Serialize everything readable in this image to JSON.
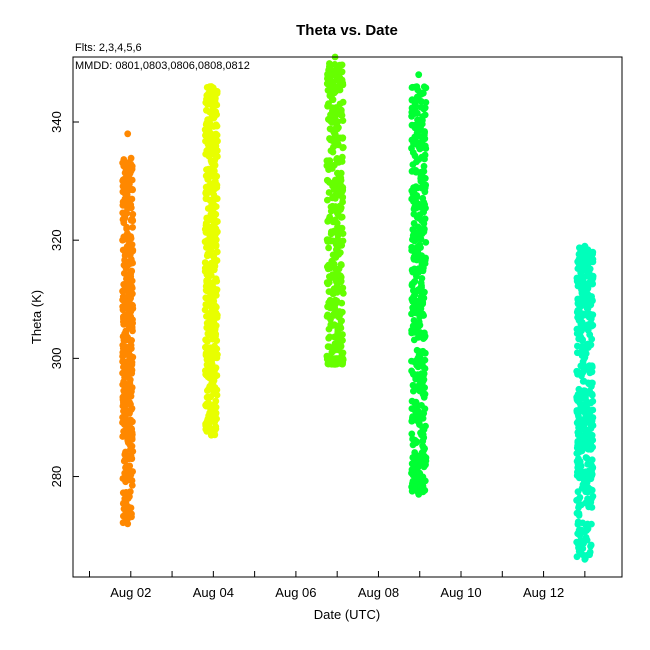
{
  "chart_data": {
    "type": "scatter",
    "title": "Theta  vs. Date",
    "xlabel": "Date (UTC)",
    "ylabel": "Theta (K)",
    "annotations": {
      "flights": "Flts: 2,3,4,5,6",
      "dates": "MMDD: 0801,0803,0806,0808,0812"
    },
    "xlim": [
      0.6,
      13.9
    ],
    "ylim": [
      263,
      351
    ],
    "x_tick_labels": [
      {
        "day": 2,
        "label": "Aug 02"
      },
      {
        "day": 4,
        "label": "Aug 04"
      },
      {
        "day": 6,
        "label": "Aug 06"
      },
      {
        "day": 8,
        "label": "Aug 08"
      },
      {
        "day": 10,
        "label": "Aug 10"
      },
      {
        "day": 12,
        "label": "Aug 12"
      }
    ],
    "x_minor_ticks": [
      1,
      3,
      5,
      7,
      9,
      11,
      13
    ],
    "y_ticks": [
      280,
      300,
      320,
      340
    ],
    "series": [
      {
        "x_start": 1.8,
        "x_end": 2.05,
        "y_min": 272,
        "y_max": 338,
        "core_min": 286,
        "core_max": 334,
        "tail_min": 272,
        "color": "#ff8800"
      },
      {
        "x_start": 3.8,
        "x_end": 4.1,
        "y_min": 287,
        "y_max": 346,
        "core_min": 300,
        "core_max": 346,
        "tail_min": 287,
        "color": "#e8ff00"
      },
      {
        "x_start": 6.75,
        "x_end": 7.15,
        "y_min": 299,
        "y_max": 351,
        "core_min": 299,
        "core_max": 350,
        "tail_min": 299,
        "color": "#66ff00"
      },
      {
        "x_start": 8.8,
        "x_end": 9.15,
        "y_min": 277,
        "y_max": 348,
        "core_min": 283,
        "core_max": 346,
        "tail_min": 277,
        "color": "#00ff33"
      },
      {
        "x_start": 12.8,
        "x_end": 13.2,
        "y_min": 266,
        "y_max": 319,
        "core_min": 280,
        "core_max": 319,
        "tail_min": 266,
        "color": "#00ffbb"
      }
    ]
  }
}
